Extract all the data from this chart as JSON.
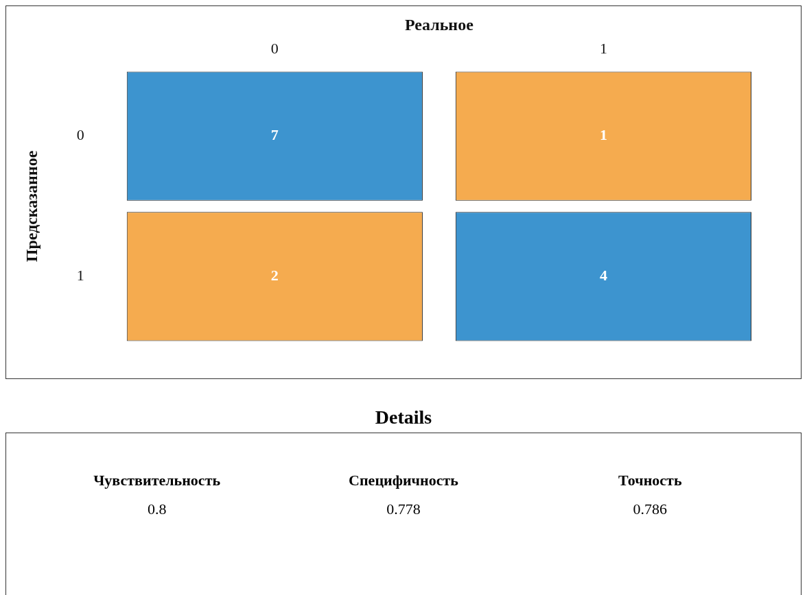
{
  "chart_data": [
    {
      "type": "heatmap",
      "xlabel": "Реальное",
      "ylabel": "Предсказанное",
      "categories": [
        "0",
        "1"
      ],
      "y_categories": [
        "0",
        "1"
      ],
      "cells": [
        [
          7,
          1
        ],
        [
          2,
          4
        ]
      ],
      "colors": [
        [
          "#3d94cf",
          "#f5ab4f"
        ],
        [
          "#f5ab4f",
          "#3d94cf"
        ]
      ],
      "data_labels": true
    },
    {
      "type": "other",
      "title": "Details",
      "categories": [
        "Чувствительность",
        "Специфичность",
        "Точность"
      ],
      "values": [
        0.8,
        0.778,
        0.786
      ],
      "data_labels": true
    }
  ]
}
